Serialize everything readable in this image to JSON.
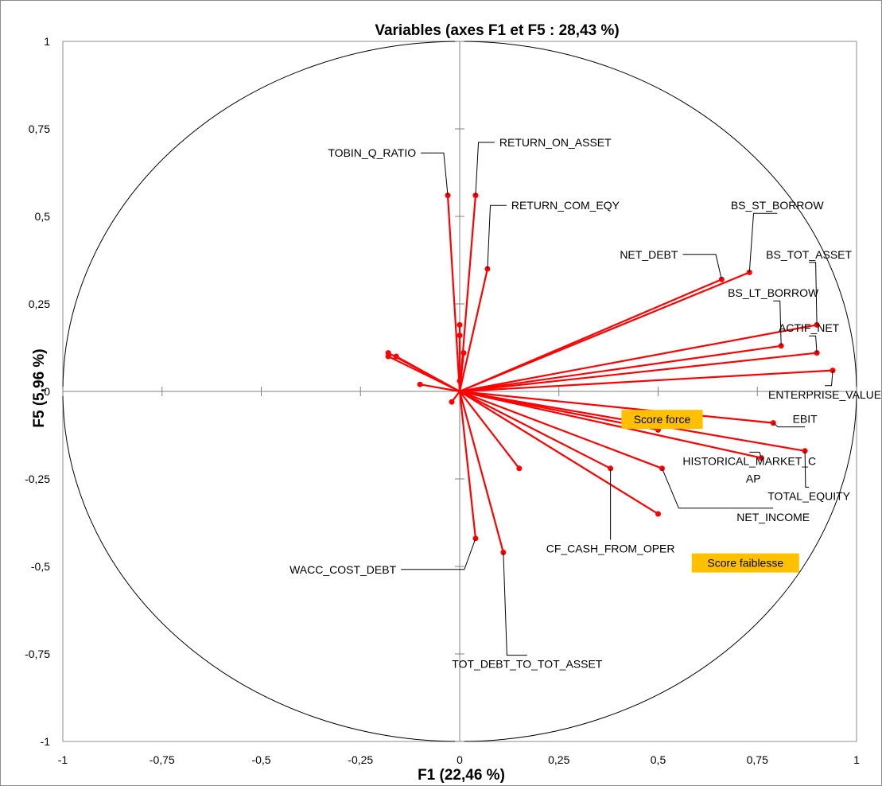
{
  "chart_data": {
    "type": "scatter",
    "title": "Variables (axes F1 et F5 : 28,43 %)",
    "xlabel": "F1 (22,46 %)",
    "ylabel": "F5 (5,96 %)",
    "xlim": [
      -1,
      1
    ],
    "ylim": [
      -1,
      1
    ],
    "x_ticks": [
      {
        "value": -1,
        "label": "-1"
      },
      {
        "value": -0.75,
        "label": "-0,75"
      },
      {
        "value": -0.5,
        "label": "-0,5"
      },
      {
        "value": -0.25,
        "label": "-0,25"
      },
      {
        "value": 0,
        "label": "0"
      },
      {
        "value": 0.25,
        "label": "0,25"
      },
      {
        "value": 0.5,
        "label": "0,5"
      },
      {
        "value": 0.75,
        "label": "0,75"
      },
      {
        "value": 1,
        "label": "1"
      }
    ],
    "y_ticks": [
      {
        "value": 1,
        "label": "1"
      },
      {
        "value": 0.75,
        "label": "0,75"
      },
      {
        "value": 0.5,
        "label": "0,5"
      },
      {
        "value": 0.25,
        "label": "0,25"
      },
      {
        "value": 0,
        "label": "0"
      },
      {
        "value": -0.25,
        "label": "-0,25"
      },
      {
        "value": -0.5,
        "label": "-0,5"
      },
      {
        "value": -0.75,
        "label": "-0,75"
      },
      {
        "value": -1,
        "label": "-1"
      }
    ],
    "correlation_circle": true,
    "vector_color": "#ff0000",
    "points": [
      {
        "label": "TOBIN_Q_RATIO",
        "x": -0.03,
        "y": 0.56,
        "lx": -0.11,
        "ly": 0.67,
        "anchor": "end"
      },
      {
        "label": "RETURN_ON_ASSET",
        "x": 0.04,
        "y": 0.56,
        "lx": 0.1,
        "ly": 0.7,
        "anchor": "start"
      },
      {
        "label": "RETURN_COM_EQY",
        "x": 0.07,
        "y": 0.35,
        "lx": 0.13,
        "ly": 0.52,
        "anchor": "start"
      },
      {
        "label": "BS_ST_BORROW",
        "x": 0.73,
        "y": 0.34,
        "lx": 0.8,
        "ly": 0.52,
        "anchor": "middle"
      },
      {
        "label": "NET_DEBT",
        "x": 0.66,
        "y": 0.32,
        "lx": 0.55,
        "ly": 0.38,
        "anchor": "end"
      },
      {
        "label": "BS_TOT_ASSET",
        "x": 0.9,
        "y": 0.19,
        "lx": 0.88,
        "ly": 0.38,
        "anchor": "middle"
      },
      {
        "label": "BS_LT_BORROW",
        "x": 0.81,
        "y": 0.13,
        "lx": 0.79,
        "ly": 0.27,
        "anchor": "middle"
      },
      {
        "label": "ACTIF_NET",
        "x": 0.9,
        "y": 0.11,
        "lx": 0.88,
        "ly": 0.17,
        "anchor": "middle"
      },
      {
        "label": "ENTERPRISE_VALUE",
        "x": 0.94,
        "y": 0.06,
        "lx": 0.92,
        "ly": -0.02,
        "anchor": "middle"
      },
      {
        "label": "EBIT",
        "x": 0.79,
        "y": -0.09,
        "lx": 0.87,
        "ly": -0.09,
        "anchor": "middle"
      },
      {
        "label": "HISTORICAL_MARKET_C",
        "x": 0.76,
        "y": -0.19,
        "lx": 0.73,
        "ly": -0.21,
        "anchor": "middle"
      },
      {
        "label": "AP",
        "x": 0,
        "y": 0,
        "lx": 0.74,
        "ly": -0.26,
        "anchor": "middle",
        "text_only": true
      },
      {
        "label": "TOTAL_EQUITY",
        "x": 0.87,
        "y": -0.17,
        "lx": 0.88,
        "ly": -0.31,
        "anchor": "middle"
      },
      {
        "label": "NET_INCOME",
        "x": 0.51,
        "y": -0.22,
        "lx": 0.79,
        "ly": -0.37,
        "anchor": "middle"
      },
      {
        "label": "CF_CASH_FROM_OPER",
        "x": 0.38,
        "y": -0.22,
        "lx": 0.38,
        "ly": -0.46,
        "anchor": "middle"
      },
      {
        "label": "WACC_COST_DEBT",
        "x": 0.04,
        "y": -0.42,
        "lx": -0.16,
        "ly": -0.52,
        "anchor": "end"
      },
      {
        "label": "TOT_DEBT_TO_TOT_ASSET",
        "x": 0.11,
        "y": -0.46,
        "lx": 0.17,
        "ly": -0.79,
        "anchor": "middle"
      },
      {
        "label": "",
        "x": 0.15,
        "y": -0.22
      },
      {
        "label": "",
        "x": 0.5,
        "y": -0.35
      },
      {
        "label": "",
        "x": 0.5,
        "y": -0.11
      },
      {
        "label": "",
        "x": -0.18,
        "y": 0.11
      },
      {
        "label": "",
        "x": -0.18,
        "y": 0.1
      },
      {
        "label": "",
        "x": -0.16,
        "y": 0.1
      },
      {
        "label": "",
        "x": -0.1,
        "y": 0.02
      },
      {
        "label": "",
        "x": 0,
        "y": 0.19
      },
      {
        "label": "",
        "x": 0.01,
        "y": 0.11
      },
      {
        "label": "",
        "x": 0,
        "y": 0.16
      },
      {
        "label": "",
        "x": -0.02,
        "y": -0.03
      },
      {
        "label": "",
        "x": 0,
        "y": 0.03
      }
    ],
    "annotations": [
      {
        "text": "Score force",
        "x": 0.51,
        "y": -0.08,
        "bg": "#ffc000"
      },
      {
        "text": "Score faiblesse",
        "x": 0.72,
        "y": -0.49,
        "bg": "#ffc000"
      }
    ]
  }
}
